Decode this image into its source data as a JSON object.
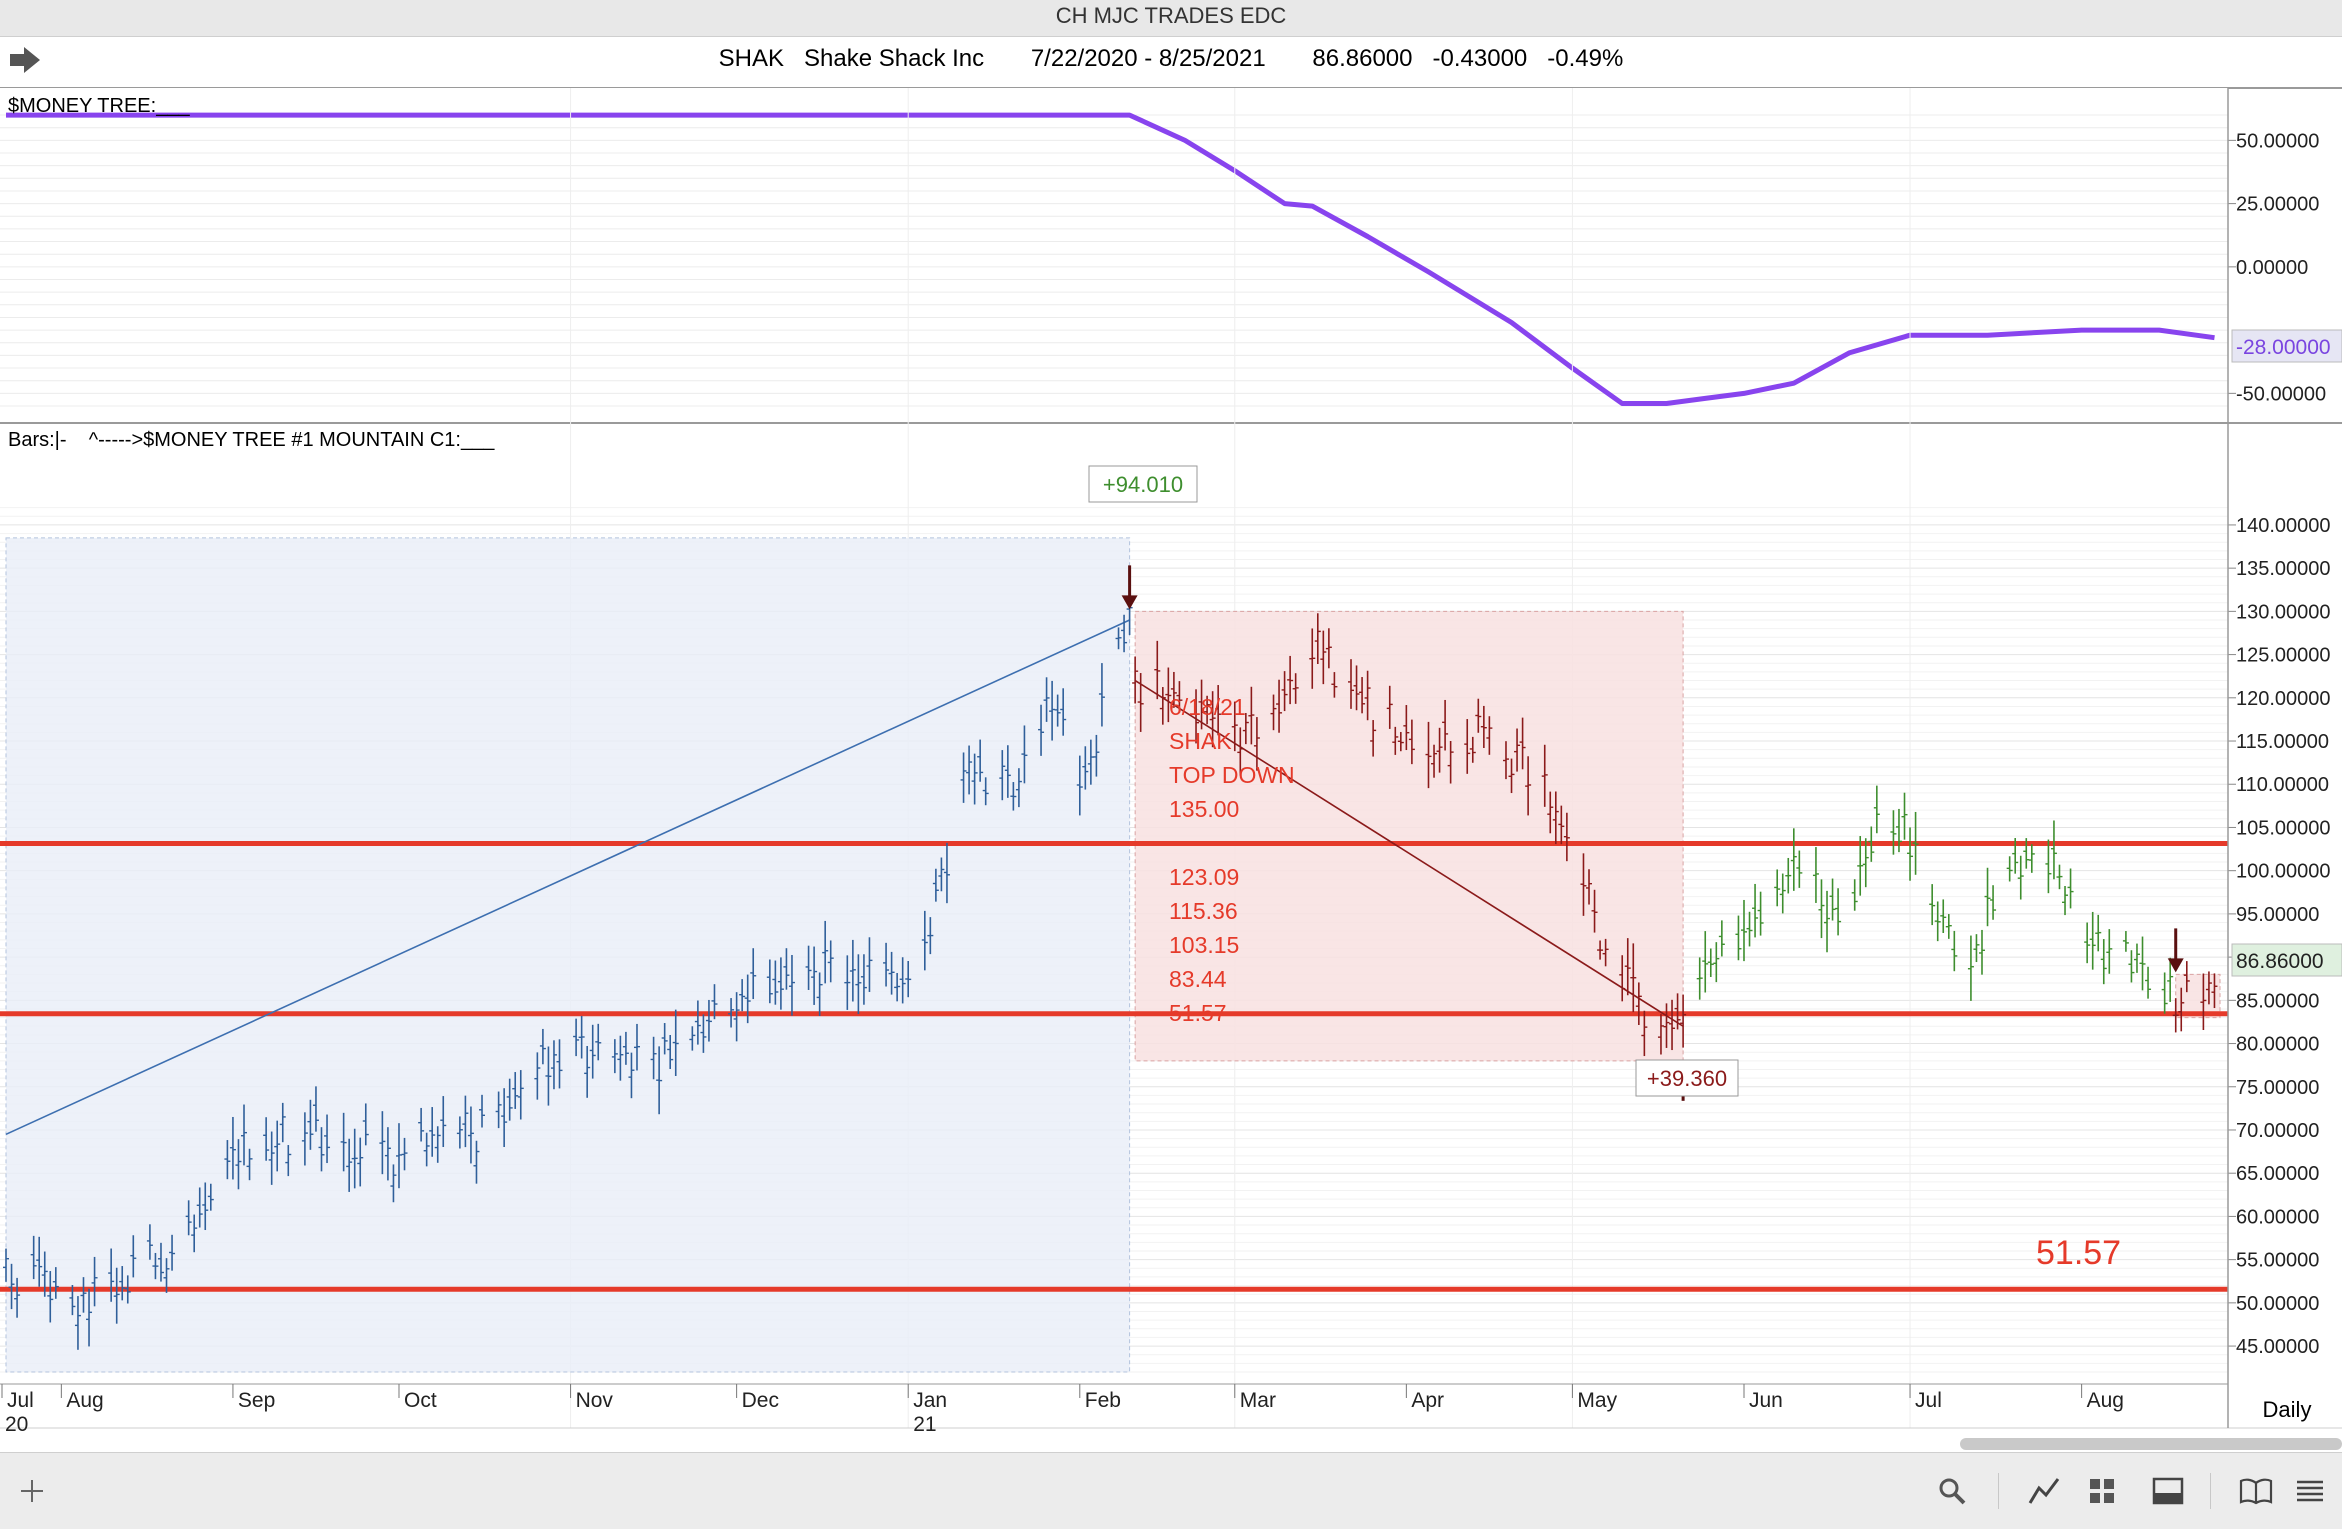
{
  "window": {
    "title": "CH MJC TRADES EDC"
  },
  "header": {
    "symbol": "SHAK",
    "company": "Shake Shack Inc",
    "date_range": "7/22/2020 - 8/25/2021",
    "last": "86.86000",
    "change": "-0.43000",
    "change_pct": "-0.49%"
  },
  "upper_pane": {
    "label": "$MONEY TREE:___",
    "current_value_label": "-28.00000",
    "line_color": "#8844ee"
  },
  "lower_pane": {
    "label": "Bars:|-    ^----->$MONEY TREE #1 MOUNTAIN C1:___",
    "price_tag": "86.86000",
    "period_label": "Daily"
  },
  "annotations": {
    "peak_callout": "+94.010",
    "trough_callout": "+39.360",
    "note_lines": [
      "6/18/21",
      "SHAK",
      "TOP DOWN",
      "135.00",
      "",
      "123.09",
      "115.36",
      "103.15",
      "83.44",
      "51.57"
    ],
    "level_label": "51.57",
    "level_color": "#e53a2a",
    "note_color": "#e53a2a"
  },
  "chart_data": [
    {
      "type": "line",
      "name": "$MONEY TREE",
      "yticks": [
        "50.00000",
        "25.00000",
        "0.00000",
        "-50.00000"
      ],
      "ylim": [
        -55,
        62
      ],
      "x": [
        "2020-07-22",
        "2020-08-01",
        "2020-09-01",
        "2020-10-01",
        "2020-11-01",
        "2020-12-01",
        "2021-01-01",
        "2021-02-01",
        "2021-02-10",
        "2021-02-20",
        "2021-03-01",
        "2021-03-10",
        "2021-03-15",
        "2021-03-25",
        "2021-04-05",
        "2021-04-20",
        "2021-05-01",
        "2021-05-10",
        "2021-05-18",
        "2021-05-25",
        "2021-06-01",
        "2021-06-10",
        "2021-06-20",
        "2021-07-01",
        "2021-07-15",
        "2021-08-01",
        "2021-08-15",
        "2021-08-25"
      ],
      "y": [
        60,
        60,
        60,
        60,
        60,
        60,
        60,
        60,
        60,
        50,
        38,
        25,
        24,
        12,
        -2,
        -22,
        -40,
        -54,
        -54,
        -52,
        -50,
        -46,
        -34,
        -27,
        -27,
        -25,
        -25,
        -28
      ]
    },
    {
      "type": "ohlc",
      "name": "SHAK",
      "yticks": [
        "140.00000",
        "135.00000",
        "130.00000",
        "125.00000",
        "120.00000",
        "115.00000",
        "110.00000",
        "105.00000",
        "100.00000",
        "95.00000",
        "90.00000",
        "85.00000",
        "80.00000",
        "75.00000",
        "70.00000",
        "65.00000",
        "60.00000",
        "55.00000",
        "50.00000",
        "45.00000"
      ],
      "ylim": [
        42,
        143
      ],
      "xticks": [
        "Jul",
        "Aug",
        "Sep",
        "Oct",
        "Nov",
        "Dec",
        "Jan",
        "Feb",
        "Mar",
        "Apr",
        "May",
        "Jun",
        "Jul",
        "Aug"
      ],
      "xtick_years": [
        "20",
        "21"
      ],
      "horizontal_levels": [
        103.15,
        83.44,
        51.57
      ],
      "trend_lines": [
        {
          "from": [
            "2020-07-22",
            69.5
          ],
          "to": [
            "2021-02-10",
            129.0
          ]
        },
        {
          "from": [
            "2021-02-11",
            122.0
          ],
          "to": [
            "2021-05-21",
            82.0
          ]
        }
      ],
      "boxes": [
        {
          "x": [
            "2020-07-22",
            "2021-02-10"
          ],
          "y": [
            42,
            138.5
          ]
        },
        {
          "x": [
            "2021-02-11",
            "2021-05-21"
          ],
          "y": [
            78,
            130
          ]
        },
        {
          "x": [
            "2021-08-18",
            "2021-08-26"
          ],
          "y": [
            83,
            88
          ]
        }
      ],
      "markers": [
        {
          "date": "2021-02-10",
          "direction": "down",
          "price": 130
        },
        {
          "date": "2021-05-21",
          "direction": "up",
          "price": 78
        },
        {
          "date": "2021-08-18",
          "direction": "down",
          "price": 88
        }
      ],
      "segments": [
        {
          "color": "#2f5f9a",
          "dates": [
            "2020-07-22",
            "2020-08-05",
            "2020-08-20",
            "2020-09-01",
            "2020-09-15",
            "2020-10-01",
            "2020-10-15",
            "2020-11-01",
            "2020-11-15",
            "2020-12-01",
            "2020-12-15",
            "2021-01-01",
            "2021-01-06",
            "2021-01-12",
            "2021-01-20",
            "2021-01-27",
            "2021-02-01",
            "2021-02-10"
          ],
          "close": [
            53,
            50,
            56,
            68,
            70,
            67,
            70,
            80,
            77,
            85,
            89,
            86,
            96,
            112,
            110,
            121,
            109,
            130
          ]
        },
        {
          "color": "#8b1a1a",
          "dates": [
            "2021-02-11",
            "2021-02-20",
            "2021-03-01",
            "2021-03-10",
            "2021-03-15",
            "2021-03-25",
            "2021-04-05",
            "2021-04-15",
            "2021-04-25",
            "2021-05-01",
            "2021-05-07",
            "2021-05-14",
            "2021-05-21"
          ],
          "close": [
            122,
            119,
            115,
            118,
            126,
            119,
            113,
            116,
            110,
            104,
            91,
            84,
            82
          ]
        },
        {
          "color": "#3e8e2e",
          "dates": [
            "2021-05-22",
            "2021-06-01",
            "2021-06-10",
            "2021-06-20",
            "2021-06-25",
            "2021-07-01",
            "2021-07-10",
            "2021-07-20",
            "2021-07-25",
            "2021-08-01",
            "2021-08-10",
            "2021-08-17"
          ],
          "close": [
            85,
            93,
            100,
            94,
            106,
            104,
            88,
            101,
            103,
            92,
            89,
            86
          ]
        },
        {
          "color": "#8b1a1a",
          "dates": [
            "2021-08-18",
            "2021-08-22",
            "2021-08-25"
          ],
          "close": [
            85,
            85,
            86.86
          ]
        }
      ]
    }
  ]
}
